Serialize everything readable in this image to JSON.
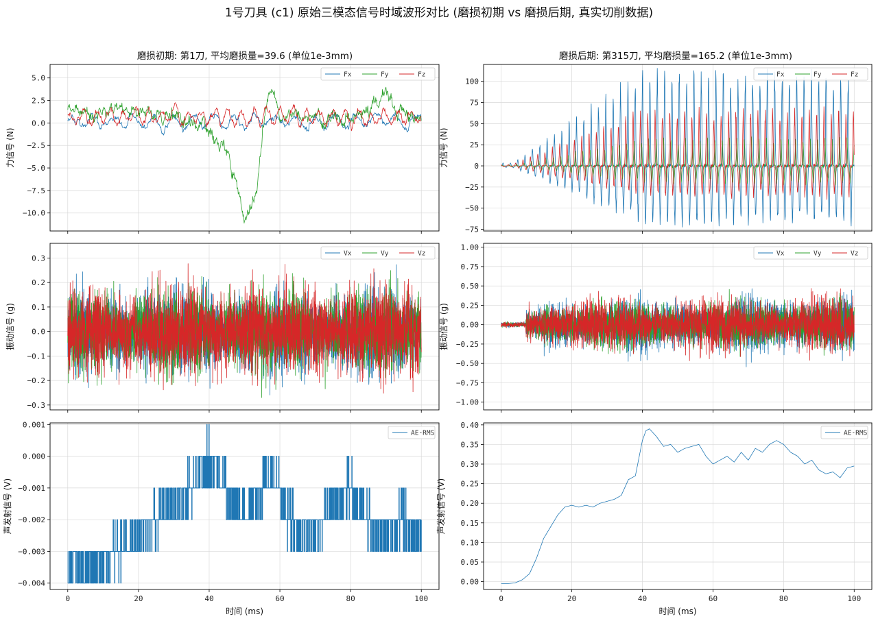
{
  "figure": {
    "suptitle": "1号刀具 (c1) 原始三模态信号时域波形对比 (磨损初期 vs 磨损后期, 真实切削数据)",
    "left_title": "磨损初期: 第1刀, 平均磨损量=39.6 (单位1e-3mm)",
    "right_title": "磨损后期: 第315刀, 平均磨损量=165.2 (单位1e-3mm)",
    "xlabel": "时间 (ms)",
    "colors": {
      "blue": "#1f77b4",
      "green": "#2ca02c",
      "red": "#d62728"
    }
  },
  "chart_data": [
    {
      "id": "force-early",
      "type": "line",
      "ylabel": "力信号 (N)",
      "xlim": [
        -5,
        105
      ],
      "ylim": [
        -12.0,
        6.5
      ],
      "xticks": [
        0,
        20,
        40,
        60,
        80,
        100
      ],
      "xtick_labels_shown": false,
      "yticks": [
        5.0,
        2.5,
        0.0,
        -2.5,
        -5.0,
        -7.5,
        -10.0
      ],
      "ytick_labels": [
        "5.0",
        "2.5",
        "0.0",
        "−2.5",
        "−5.0",
        "−7.5",
        "−10.0"
      ],
      "legend": [
        "Fx",
        "Fy",
        "Fz"
      ],
      "series": [
        {
          "name": "Fx",
          "color": "blue",
          "amplitude": 1.0,
          "x": [
            0,
            100
          ]
        },
        {
          "name": "Fy",
          "color": "green",
          "amplitude": 1.5,
          "envelope": [
            [
              0,
              1.0
            ],
            [
              10,
              1.2
            ],
            [
              20,
              1.5
            ],
            [
              25,
              1.5
            ],
            [
              30,
              0.5
            ],
            [
              40,
              -0.5
            ],
            [
              45,
              -3.0
            ],
            [
              48,
              -7.5
            ],
            [
              50,
              -10.5
            ],
            [
              52,
              -9.5
            ],
            [
              54,
              -5.0
            ],
            [
              56,
              2.0
            ],
            [
              58,
              4.0
            ],
            [
              60,
              1.0
            ],
            [
              70,
              0.5
            ],
            [
              80,
              0.8
            ],
            [
              88,
              2.0
            ],
            [
              90,
              4.5
            ],
            [
              93,
              1.0
            ],
            [
              100,
              0.3
            ]
          ]
        },
        {
          "name": "Fz",
          "color": "red",
          "amplitude": 1.2,
          "x": [
            0,
            100
          ]
        }
      ]
    },
    {
      "id": "force-late",
      "type": "line",
      "ylabel": "力信号 (N)",
      "xlim": [
        -5,
        105
      ],
      "ylim": [
        -77,
        120
      ],
      "xticks": [
        0,
        20,
        40,
        60,
        80,
        100
      ],
      "xtick_labels_shown": false,
      "yticks": [
        100,
        75,
        50,
        25,
        0,
        -25,
        -50,
        -75
      ],
      "ytick_labels": [
        "100",
        "75",
        "50",
        "25",
        "0",
        "−25",
        "−50",
        "−75"
      ],
      "legend": [
        "Fx",
        "Fy",
        "Fz"
      ],
      "series": [
        {
          "name": "Fx",
          "color": "blue",
          "peak_max": 105,
          "trough_min": -66
        },
        {
          "name": "Fy",
          "color": "green",
          "peak_max": 30,
          "trough_min": -20
        },
        {
          "name": "Fz",
          "color": "red",
          "peak_max": 62,
          "trough_min": -35
        }
      ]
    },
    {
      "id": "vib-early",
      "type": "line",
      "ylabel": "振动信号 (g)",
      "xlim": [
        -5,
        105
      ],
      "ylim": [
        -0.32,
        0.36
      ],
      "xticks": [
        0,
        20,
        40,
        60,
        80,
        100
      ],
      "xtick_labels_shown": false,
      "yticks": [
        0.3,
        0.2,
        0.1,
        0.0,
        -0.1,
        -0.2,
        -0.3
      ],
      "ytick_labels": [
        "0.3",
        "0.2",
        "0.1",
        "0.0",
        "−0.1",
        "−0.2",
        "−0.3"
      ],
      "legend": [
        "Vx",
        "Vy",
        "Vz"
      ],
      "series": [
        {
          "name": "Vx",
          "color": "blue",
          "peak_max": 0.28,
          "trough_min": -0.29
        },
        {
          "name": "Vy",
          "color": "green",
          "peak_max": 0.27,
          "trough_min": -0.27
        },
        {
          "name": "Vz",
          "color": "red",
          "peak_max": 0.29,
          "trough_min": -0.28
        }
      ]
    },
    {
      "id": "vib-late",
      "type": "line",
      "ylabel": "振动信号 (g)",
      "xlim": [
        -5,
        105
      ],
      "ylim": [
        -1.1,
        1.05
      ],
      "xticks": [
        0,
        20,
        40,
        60,
        80,
        100
      ],
      "xtick_labels_shown": false,
      "yticks": [
        1.0,
        0.75,
        0.5,
        0.25,
        0.0,
        -0.25,
        -0.5,
        -0.75,
        -1.0
      ],
      "ytick_labels": [
        "1.00",
        "0.75",
        "0.50",
        "0.25",
        "0.00",
        "−0.25",
        "−0.50",
        "−0.75",
        "−1.00"
      ],
      "legend": [
        "Vx",
        "Vy",
        "Vz"
      ],
      "series": [
        {
          "name": "Vx",
          "color": "blue",
          "peak_max": 0.97,
          "trough_min": -0.95
        },
        {
          "name": "Vy",
          "color": "green",
          "peak_max": 0.85,
          "trough_min": -0.9
        },
        {
          "name": "Vz",
          "color": "red",
          "peak_max": 0.9,
          "trough_min": -1.02
        }
      ]
    },
    {
      "id": "ae-early",
      "type": "line",
      "ylabel": "声发射信号 (V)",
      "xlim": [
        -5,
        105
      ],
      "ylim": [
        -0.0042,
        0.00105
      ],
      "xticks": [
        0,
        20,
        40,
        60,
        80,
        100
      ],
      "xtick_labels": [
        "0",
        "20",
        "40",
        "60",
        "80",
        "100"
      ],
      "yticks": [
        0.001,
        0.0,
        -0.001,
        -0.002,
        -0.003,
        -0.004
      ],
      "ytick_labels": [
        "0.001",
        "0.000",
        "−0.001",
        "−0.002",
        "−0.003",
        "−0.004"
      ],
      "legend": [
        "AE-RMS"
      ],
      "series": [
        {
          "name": "AE-RMS",
          "color": "blue",
          "quantized_step": 0.001,
          "level_profile": [
            [
              0,
              -0.0035
            ],
            [
              10,
              -0.0033
            ],
            [
              15,
              -0.003
            ],
            [
              20,
              -0.0025
            ],
            [
              30,
              -0.0015
            ],
            [
              35,
              -0.001
            ],
            [
              40,
              0.0
            ],
            [
              45,
              -0.001
            ],
            [
              50,
              -0.002
            ],
            [
              55,
              -0.001
            ],
            [
              58,
              -0.0005
            ],
            [
              62,
              -0.002
            ],
            [
              70,
              -0.0025
            ],
            [
              75,
              -0.0015
            ],
            [
              80,
              -0.001
            ],
            [
              85,
              -0.002
            ],
            [
              90,
              -0.0025
            ],
            [
              95,
              -0.002
            ],
            [
              100,
              -0.0025
            ]
          ]
        }
      ]
    },
    {
      "id": "ae-late",
      "type": "line",
      "ylabel": "声发射信号 (V)",
      "xlim": [
        -5,
        105
      ],
      "ylim": [
        -0.02,
        0.405
      ],
      "xticks": [
        0,
        20,
        40,
        60,
        80,
        100
      ],
      "xtick_labels": [
        "0",
        "20",
        "40",
        "60",
        "80",
        "100"
      ],
      "yticks": [
        0.4,
        0.35,
        0.3,
        0.25,
        0.2,
        0.15,
        0.1,
        0.05,
        0.0
      ],
      "ytick_labels": [
        "0.40",
        "0.35",
        "0.30",
        "0.25",
        "0.20",
        "0.15",
        "0.10",
        "0.05",
        "0.00"
      ],
      "legend": [
        "AE-RMS"
      ],
      "series": [
        {
          "name": "AE-RMS",
          "color": "blue",
          "x": [
            0,
            2,
            4,
            6,
            8,
            10,
            12,
            14,
            16,
            18,
            20,
            22,
            24,
            26,
            28,
            30,
            32,
            34,
            36,
            38,
            40,
            41,
            42,
            44,
            46,
            48,
            50,
            52,
            54,
            56,
            58,
            60,
            62,
            64,
            66,
            68,
            70,
            72,
            74,
            76,
            78,
            80,
            82,
            84,
            86,
            88,
            90,
            92,
            94,
            96,
            98,
            100
          ],
          "y": [
            -0.005,
            -0.005,
            -0.003,
            0.005,
            0.02,
            0.06,
            0.11,
            0.14,
            0.17,
            0.19,
            0.195,
            0.19,
            0.195,
            0.19,
            0.2,
            0.205,
            0.21,
            0.22,
            0.26,
            0.27,
            0.36,
            0.385,
            0.39,
            0.37,
            0.345,
            0.35,
            0.33,
            0.34,
            0.345,
            0.35,
            0.32,
            0.3,
            0.31,
            0.32,
            0.305,
            0.33,
            0.31,
            0.34,
            0.33,
            0.35,
            0.36,
            0.35,
            0.33,
            0.32,
            0.3,
            0.31,
            0.285,
            0.275,
            0.28,
            0.265,
            0.29,
            0.295
          ]
        }
      ]
    }
  ]
}
